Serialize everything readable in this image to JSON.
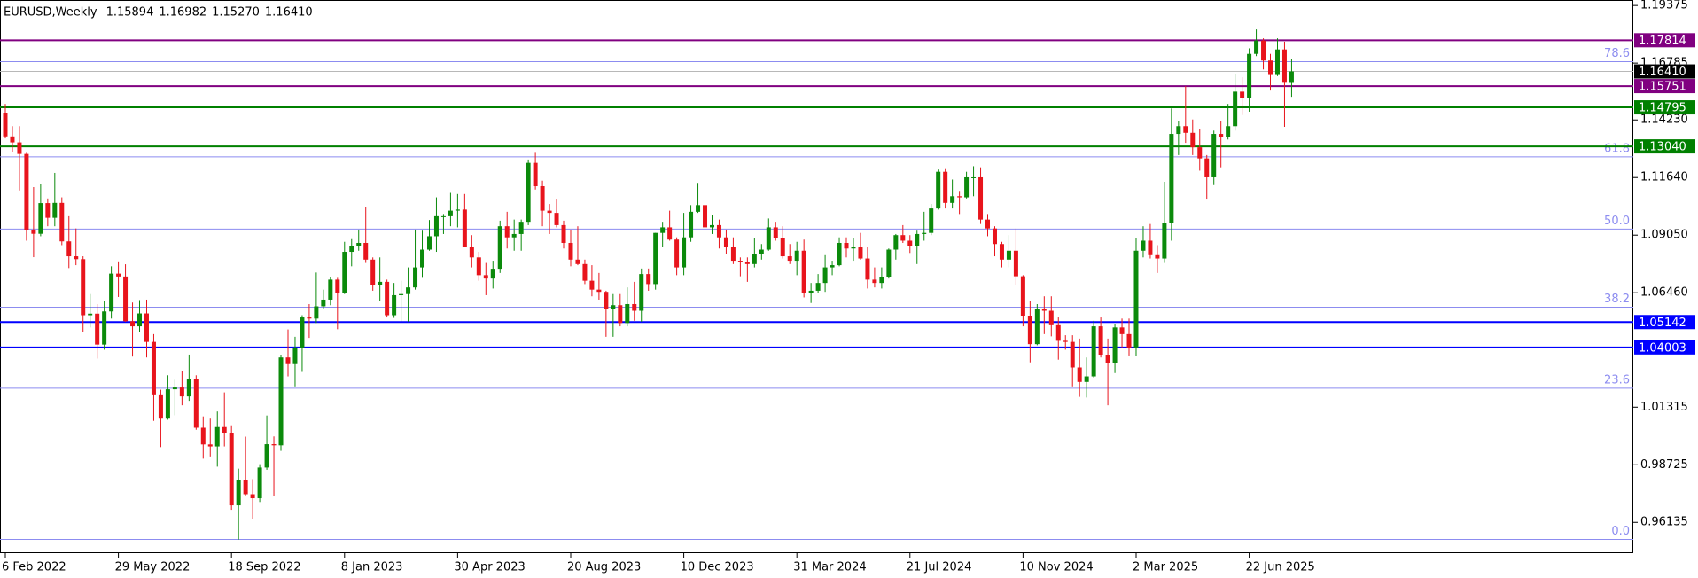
{
  "chart_data": {
    "type": "candlestick",
    "title": "EURUSD,Weekly",
    "header_ohlc": [
      "1.15894",
      "1.16982",
      "1.15270",
      "1.16410"
    ],
    "up_color": "#0b8a0b",
    "down_color": "#e8141c",
    "ylim": [
      0.9475,
      1.1962
    ],
    "yticks": [
      {
        "value": 1.19375,
        "label": "1.19375"
      },
      {
        "value": 1.16785,
        "label": "1.16785"
      },
      {
        "value": 1.1423,
        "label": "1.14230"
      },
      {
        "value": 1.1164,
        "label": "1.11640"
      },
      {
        "value": 1.0905,
        "label": "1.09050"
      },
      {
        "value": 1.0646,
        "label": "1.06460"
      },
      {
        "value": 1.01315,
        "label": "1.01315"
      },
      {
        "value": 0.98725,
        "label": "0.98725"
      },
      {
        "value": 0.96135,
        "label": "0.96135"
      }
    ],
    "fib_color": "#8c8cf0",
    "fib_levels": [
      {
        "value": 1.1685,
        "label": "78.6"
      },
      {
        "value": 1.1257,
        "label": "61.8"
      },
      {
        "value": 1.0932,
        "label": "50.0"
      },
      {
        "value": 1.0581,
        "label": "38.2"
      },
      {
        "value": 1.0217,
        "label": "23.6"
      },
      {
        "value": 0.9537,
        "label": "0.0"
      }
    ],
    "levels": [
      {
        "value": 1.17814,
        "label": "1.17814",
        "color": "#800080"
      },
      {
        "value": 1.15751,
        "label": "1.15751",
        "color": "#800080"
      },
      {
        "value": 1.14795,
        "label": "1.14795",
        "color": "#008000"
      },
      {
        "value": 1.1304,
        "label": "1.13040",
        "color": "#008000"
      },
      {
        "value": 1.05142,
        "label": "1.05142",
        "color": "#0000ff"
      },
      {
        "value": 1.04003,
        "label": "1.04003",
        "color": "#0000ff"
      }
    ],
    "last_price": {
      "value": 1.1641,
      "label": "1.16410",
      "color": "#000000"
    },
    "categories": [
      "6 Feb 2022",
      null,
      null,
      null,
      null,
      null,
      null,
      null,
      null,
      null,
      null,
      null,
      null,
      null,
      null,
      null,
      "29 May 2022",
      null,
      null,
      null,
      null,
      null,
      null,
      null,
      null,
      null,
      null,
      null,
      null,
      null,
      null,
      null,
      "18 Sep 2022",
      null,
      null,
      null,
      null,
      null,
      null,
      null,
      null,
      null,
      null,
      null,
      null,
      null,
      null,
      null,
      "8 Jan 2023",
      null,
      null,
      null,
      null,
      null,
      null,
      null,
      null,
      null,
      null,
      null,
      null,
      null,
      null,
      null,
      "30 Apr 2023",
      null,
      null,
      null,
      null,
      null,
      null,
      null,
      null,
      null,
      null,
      null,
      null,
      null,
      null,
      null,
      "20 Aug 2023",
      null,
      null,
      null,
      null,
      null,
      null,
      null,
      null,
      null,
      null,
      null,
      null,
      null,
      null,
      null,
      "10 Dec 2023",
      null,
      null,
      null,
      null,
      null,
      null,
      null,
      null,
      null,
      null,
      null,
      null,
      null,
      null,
      null,
      "31 Mar 2024",
      null,
      null,
      null,
      null,
      null,
      null,
      null,
      null,
      null,
      null,
      null,
      null,
      null,
      null,
      null,
      "21 Jul 2024",
      null,
      null,
      null,
      null,
      null,
      null,
      null,
      null,
      null,
      null,
      null,
      null,
      null,
      null,
      null,
      "10 Nov 2024",
      null,
      null,
      null,
      null,
      null,
      null,
      null,
      null,
      null,
      null,
      null,
      null,
      null,
      null,
      null,
      "2 Mar 2025",
      null,
      null,
      null,
      null,
      null,
      null,
      null,
      null,
      null,
      null,
      null,
      null,
      null,
      null,
      null,
      "22 Jun 2025",
      null,
      null,
      null,
      null,
      null,
      null
    ],
    "candles": [
      [
        1.1453,
        1.1495,
        1.134,
        1.1349
      ],
      [
        1.1349,
        1.1395,
        1.128,
        1.1322
      ],
      [
        1.1322,
        1.1395,
        1.1106,
        1.127
      ],
      [
        1.127,
        1.1275,
        1.088,
        1.0929
      ],
      [
        1.0929,
        1.1121,
        1.0806,
        1.0911
      ],
      [
        1.0911,
        1.1137,
        1.09,
        1.1049
      ],
      [
        1.1049,
        1.107,
        1.0945,
        1.0983
      ],
      [
        1.0983,
        1.1185,
        1.0945,
        1.105
      ],
      [
        1.105,
        1.1075,
        1.086,
        1.0877
      ],
      [
        1.0877,
        1.099,
        1.0757,
        1.081
      ],
      [
        1.081,
        1.0935,
        1.077,
        1.0797
      ],
      [
        1.0797,
        1.081,
        1.047,
        1.0545
      ],
      [
        1.0545,
        1.064,
        1.049,
        1.0552
      ],
      [
        1.0552,
        1.0595,
        1.035,
        1.0413
      ],
      [
        1.0413,
        1.0607,
        1.039,
        1.0562
      ],
      [
        1.0562,
        1.0765,
        1.053,
        1.0732
      ],
      [
        1.0732,
        1.0787,
        1.0627,
        1.0719
      ],
      [
        1.0719,
        1.0774,
        1.0515,
        1.0518
      ],
      [
        1.0518,
        1.0602,
        1.0359,
        1.0495
      ],
      [
        1.0495,
        1.0613,
        1.047,
        1.0553
      ],
      [
        1.0553,
        1.0615,
        1.0355,
        1.0425
      ],
      [
        1.0425,
        1.046,
        1.007,
        1.0185
      ],
      [
        1.0185,
        1.021,
        0.9952,
        1.008
      ],
      [
        1.008,
        1.0275,
        1.0075,
        1.0212
      ],
      [
        1.0212,
        1.0255,
        1.0095,
        1.022
      ],
      [
        1.022,
        1.0293,
        1.014,
        1.018
      ],
      [
        1.018,
        1.0368,
        1.016,
        1.026
      ],
      [
        1.026,
        1.0275,
        1.003,
        1.0039
      ],
      [
        1.0039,
        1.009,
        0.99,
        0.9964
      ],
      [
        0.9964,
        1.008,
        0.991,
        0.9955
      ],
      [
        0.9955,
        1.0112,
        0.9864,
        1.0042
      ],
      [
        1.0042,
        1.0198,
        0.9955,
        1.0014
      ],
      [
        1.0014,
        1.005,
        0.967,
        0.969
      ],
      [
        0.969,
        0.9855,
        0.9536,
        0.9802
      ],
      [
        0.9802,
        0.9999,
        0.9735,
        0.974
      ],
      [
        0.974,
        0.9808,
        0.963,
        0.9722
      ],
      [
        0.9722,
        0.9875,
        0.9705,
        0.986
      ],
      [
        0.986,
        1.0094,
        0.985,
        0.9965
      ],
      [
        0.9965,
        1.0,
        0.973,
        0.996
      ],
      [
        0.996,
        1.0365,
        0.9935,
        1.0355
      ],
      [
        1.0355,
        1.0481,
        1.027,
        1.0325
      ],
      [
        1.0325,
        1.0448,
        1.0225,
        1.04
      ],
      [
        1.04,
        1.0545,
        1.029,
        1.0535
      ],
      [
        1.0535,
        1.0595,
        1.0443,
        1.053
      ],
      [
        1.053,
        1.0737,
        1.051,
        1.0585
      ],
      [
        1.0585,
        1.066,
        1.0575,
        1.0615
      ],
      [
        1.0615,
        1.0715,
        1.059,
        1.0705
      ],
      [
        1.0705,
        1.0713,
        1.0482,
        1.0645
      ],
      [
        1.0645,
        1.0875,
        1.064,
        1.083
      ],
      [
        1.083,
        1.0887,
        1.0765,
        1.0855
      ],
      [
        1.0855,
        1.093,
        1.0835,
        1.087
      ],
      [
        1.087,
        1.1033,
        1.078,
        1.0795
      ],
      [
        1.0795,
        1.0805,
        1.0655,
        1.068
      ],
      [
        1.068,
        1.0805,
        1.061,
        1.0695
      ],
      [
        1.0695,
        1.0705,
        1.0535,
        1.0545
      ],
      [
        1.0545,
        1.069,
        1.0533,
        1.0635
      ],
      [
        1.0635,
        1.07,
        1.0516,
        1.064
      ],
      [
        1.064,
        1.076,
        1.0516,
        1.067
      ],
      [
        1.067,
        1.093,
        1.066,
        1.076
      ],
      [
        1.076,
        1.0925,
        1.0713,
        1.084
      ],
      [
        1.084,
        1.0973,
        1.0835,
        1.09
      ],
      [
        1.09,
        1.1075,
        1.083,
        1.099
      ],
      [
        1.099,
        1.1,
        1.091,
        1.099
      ],
      [
        1.099,
        1.1095,
        1.0945,
        1.1015
      ],
      [
        1.1015,
        1.109,
        1.094,
        1.102
      ],
      [
        1.102,
        1.109,
        1.085,
        1.085
      ],
      [
        1.085,
        1.0905,
        1.076,
        1.0805
      ],
      [
        1.0805,
        1.083,
        1.07,
        1.0725
      ],
      [
        1.0725,
        1.078,
        1.0635,
        1.071
      ],
      [
        1.071,
        1.079,
        1.0665,
        1.075
      ],
      [
        1.075,
        1.097,
        1.0735,
        1.0945
      ],
      [
        1.0945,
        1.101,
        1.0845,
        1.0895
      ],
      [
        1.0895,
        1.0975,
        1.0835,
        1.091
      ],
      [
        1.091,
        1.0975,
        1.0835,
        1.0965
      ],
      [
        1.0965,
        1.1245,
        1.095,
        1.123
      ],
      [
        1.123,
        1.1275,
        1.111,
        1.1125
      ],
      [
        1.1125,
        1.115,
        1.0945,
        1.1015
      ],
      [
        1.1015,
        1.1045,
        1.091,
        1.1005
      ],
      [
        1.1005,
        1.1065,
        1.094,
        1.095
      ],
      [
        1.095,
        1.097,
        1.0845,
        1.087
      ],
      [
        1.087,
        1.093,
        1.0765,
        1.0795
      ],
      [
        1.0795,
        1.0945,
        1.077,
        1.0775
      ],
      [
        1.0775,
        1.0795,
        1.0685,
        1.07
      ],
      [
        1.07,
        1.077,
        1.063,
        1.066
      ],
      [
        1.066,
        1.0735,
        1.0615,
        1.065
      ],
      [
        1.065,
        1.0655,
        1.0448,
        1.0575
      ],
      [
        1.0575,
        1.064,
        1.0448,
        1.059
      ],
      [
        1.059,
        1.064,
        1.0495,
        1.051
      ],
      [
        1.051,
        1.067,
        1.0495,
        1.0595
      ],
      [
        1.0595,
        1.0695,
        1.052,
        1.0565
      ],
      [
        1.0565,
        1.0755,
        1.0515,
        1.073
      ],
      [
        1.073,
        1.0755,
        1.0655,
        1.0685
      ],
      [
        1.0685,
        1.0915,
        1.066,
        1.0915
      ],
      [
        1.0915,
        1.0965,
        1.085,
        1.094
      ],
      [
        1.094,
        1.1015,
        1.088,
        1.0885
      ],
      [
        1.0885,
        1.0895,
        1.0725,
        1.076
      ],
      [
        1.076,
        1.1005,
        1.0725,
        1.0895
      ],
      [
        1.0895,
        1.104,
        1.0875,
        1.101
      ],
      [
        1.101,
        1.114,
        1.1005,
        1.104
      ],
      [
        1.104,
        1.1045,
        1.0875,
        1.094
      ],
      [
        1.094,
        1.0995,
        1.091,
        1.095
      ],
      [
        1.095,
        1.0975,
        1.0845,
        1.0895
      ],
      [
        1.0895,
        1.093,
        1.082,
        1.085
      ],
      [
        1.085,
        1.0895,
        1.0775,
        1.079
      ],
      [
        1.079,
        1.0805,
        1.072,
        1.0785
      ],
      [
        1.0785,
        1.0805,
        1.0695,
        1.0775
      ],
      [
        1.0775,
        1.089,
        1.076,
        1.082
      ],
      [
        1.082,
        1.0865,
        1.0795,
        1.084
      ],
      [
        1.084,
        1.098,
        1.0835,
        1.094
      ],
      [
        1.094,
        1.0965,
        1.088,
        1.089
      ],
      [
        1.089,
        1.0945,
        1.08,
        1.081
      ],
      [
        1.081,
        1.0865,
        1.0775,
        1.079
      ],
      [
        1.079,
        1.0875,
        1.0725,
        1.0835
      ],
      [
        1.0835,
        1.0885,
        1.0625,
        1.0645
      ],
      [
        1.0645,
        1.069,
        1.06,
        1.0655
      ],
      [
        1.0655,
        1.073,
        1.0645,
        1.069
      ],
      [
        1.069,
        1.0815,
        1.065,
        1.076
      ],
      [
        1.076,
        1.079,
        1.0725,
        1.077
      ],
      [
        1.077,
        1.0895,
        1.0765,
        1.087
      ],
      [
        1.087,
        1.0895,
        1.0805,
        1.0845
      ],
      [
        1.0845,
        1.089,
        1.079,
        1.085
      ],
      [
        1.085,
        1.0915,
        1.0795,
        1.08
      ],
      [
        1.08,
        1.085,
        1.0665,
        1.0705
      ],
      [
        1.0705,
        1.076,
        1.067,
        1.069
      ],
      [
        1.069,
        1.076,
        1.0665,
        1.0715
      ],
      [
        1.0715,
        1.0845,
        1.071,
        1.084
      ],
      [
        1.084,
        1.091,
        1.0795,
        1.0905
      ],
      [
        1.0905,
        1.095,
        1.087,
        1.088
      ],
      [
        1.088,
        1.0905,
        1.0825,
        1.0855
      ],
      [
        1.0855,
        1.0925,
        1.0775,
        1.091
      ],
      [
        1.091,
        1.101,
        1.088,
        1.0915
      ],
      [
        1.0915,
        1.1045,
        1.0905,
        1.1025
      ],
      [
        1.1025,
        1.12,
        1.102,
        1.119
      ],
      [
        1.119,
        1.1202,
        1.1025,
        1.105
      ],
      [
        1.105,
        1.1155,
        1.1025,
        1.108
      ],
      [
        1.108,
        1.11,
        1.1,
        1.1075
      ],
      [
        1.1075,
        1.119,
        1.107,
        1.1165
      ],
      [
        1.1165,
        1.1215,
        1.108,
        1.1165
      ],
      [
        1.1165,
        1.121,
        1.0955,
        1.0975
      ],
      [
        1.0975,
        1.1,
        1.09,
        1.0935
      ],
      [
        1.0935,
        1.0945,
        1.081,
        1.0865
      ],
      [
        1.0865,
        1.0875,
        1.076,
        1.0795
      ],
      [
        1.0795,
        1.0905,
        1.076,
        1.0835
      ],
      [
        1.0835,
        1.0935,
        1.068,
        1.072
      ],
      [
        1.072,
        1.0725,
        1.0495,
        1.054
      ],
      [
        1.054,
        1.061,
        1.0333,
        1.0415
      ],
      [
        1.0415,
        1.0595,
        1.041,
        1.0575
      ],
      [
        1.0575,
        1.063,
        1.046,
        1.0565
      ],
      [
        1.0565,
        1.063,
        1.045,
        1.05
      ],
      [
        1.05,
        1.0535,
        1.0345,
        1.043
      ],
      [
        1.043,
        1.0455,
        1.039,
        1.0425
      ],
      [
        1.0425,
        1.0455,
        1.0225,
        1.031
      ],
      [
        1.031,
        1.044,
        1.0178,
        1.0245
      ],
      [
        1.0245,
        1.0355,
        1.0175,
        1.027
      ],
      [
        1.027,
        1.052,
        1.0265,
        1.0495
      ],
      [
        1.0495,
        1.0535,
        1.0355,
        1.0365
      ],
      [
        1.0365,
        1.044,
        1.014,
        1.033
      ],
      [
        1.033,
        1.0505,
        1.0285,
        1.049
      ],
      [
        1.049,
        1.053,
        1.04,
        1.046
      ],
      [
        1.046,
        1.053,
        1.036,
        1.04
      ],
      [
        1.04,
        1.089,
        1.036,
        1.0835
      ],
      [
        1.0835,
        1.0945,
        1.0805,
        1.088
      ],
      [
        1.088,
        1.0955,
        1.08,
        1.0815
      ],
      [
        1.0815,
        1.086,
        1.0735,
        1.08
      ],
      [
        1.08,
        1.1145,
        1.078,
        1.096
      ],
      [
        1.096,
        1.1475,
        1.088,
        1.136
      ],
      [
        1.136,
        1.142,
        1.1265,
        1.1395
      ],
      [
        1.1395,
        1.1575,
        1.132,
        1.1365
      ],
      [
        1.1365,
        1.1425,
        1.1265,
        1.13
      ],
      [
        1.13,
        1.138,
        1.1195,
        1.125
      ],
      [
        1.125,
        1.1265,
        1.1065,
        1.1165
      ],
      [
        1.1165,
        1.1375,
        1.113,
        1.136
      ],
      [
        1.136,
        1.142,
        1.121,
        1.1345
      ],
      [
        1.1345,
        1.1495,
        1.1335,
        1.1395
      ],
      [
        1.1395,
        1.163,
        1.1375,
        1.155
      ],
      [
        1.155,
        1.1615,
        1.1445,
        1.152
      ],
      [
        1.152,
        1.1745,
        1.146,
        1.172
      ],
      [
        1.172,
        1.183,
        1.171,
        1.178
      ],
      [
        1.178,
        1.179,
        1.165,
        1.169
      ],
      [
        1.169,
        1.172,
        1.1555,
        1.1625
      ],
      [
        1.1625,
        1.179,
        1.162,
        1.174
      ],
      [
        1.174,
        1.1775,
        1.1392,
        1.159
      ],
      [
        1.15894,
        1.16982,
        1.1527,
        1.1641
      ]
    ]
  }
}
